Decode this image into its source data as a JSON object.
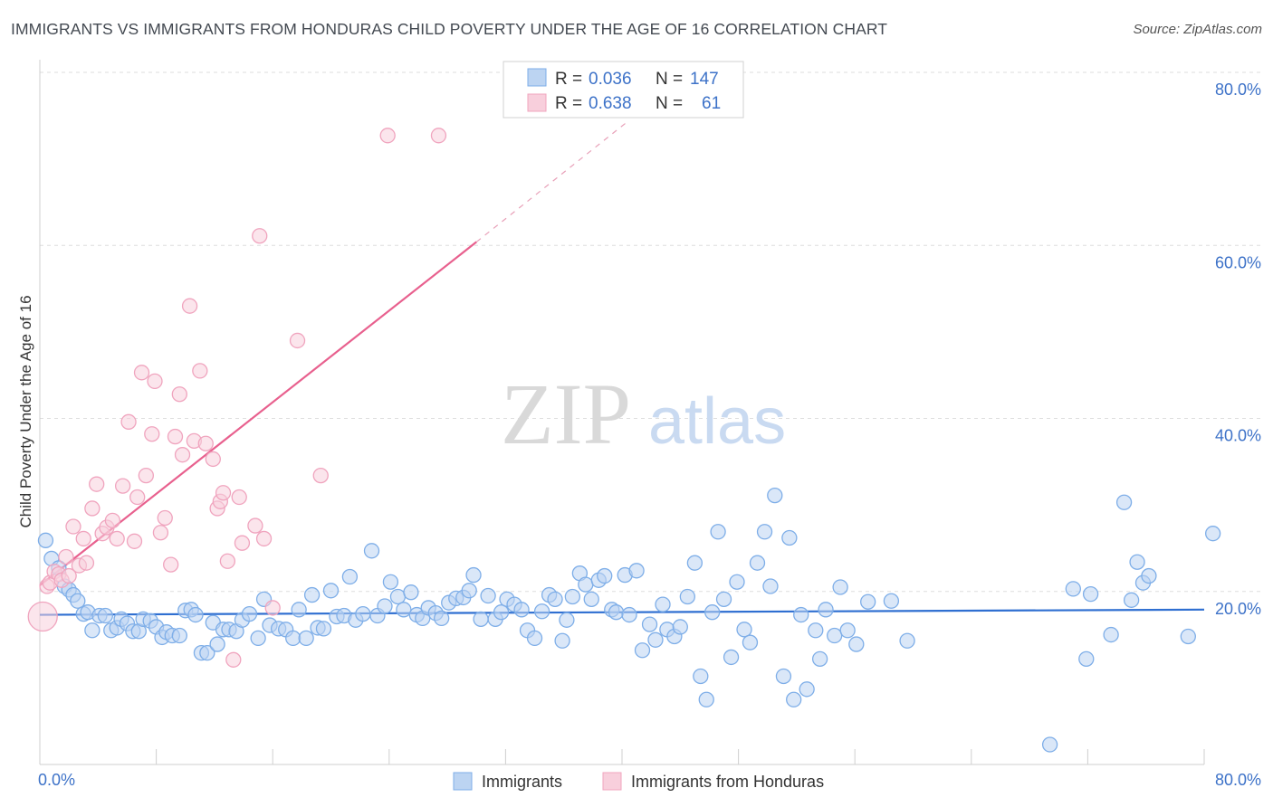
{
  "title": "IMMIGRANTS VS IMMIGRANTS FROM HONDURAS CHILD POVERTY UNDER THE AGE OF 16 CORRELATION CHART",
  "source": "Source: ZipAtlas.com",
  "watermark": {
    "zip": "ZIP",
    "atlas": "atlas"
  },
  "chart_data": {
    "type": "scatter",
    "ylabel": "Child Poverty Under the Age of 16",
    "xlim": [
      0,
      80
    ],
    "ylim": [
      0,
      80
    ],
    "x_tick_labels": [
      "0.0%",
      "80.0%"
    ],
    "y_ticks": [
      20,
      40,
      60,
      80
    ],
    "y_tick_labels": [
      "20.0%",
      "40.0%",
      "60.0%",
      "80.0%"
    ],
    "grid": true,
    "legend_position": "top-center",
    "legend": [
      {
        "r_label": "R = ",
        "r_value": "0.036",
        "n_label": "N = ",
        "n_value": "147"
      },
      {
        "r_label": "R = ",
        "r_value": "0.638",
        "n_label": "N = ",
        "n_value": "61"
      }
    ],
    "series": [
      {
        "name": "Immigrants",
        "color": "#7eaee8",
        "fill": "#bcd4f2",
        "trend_color": "#2f6fd1",
        "trend": {
          "x0": 0,
          "y0": 17.3,
          "x1": 80,
          "y1": 17.9
        },
        "points": [
          [
            0.4,
            25.9
          ],
          [
            0.8,
            23.8
          ],
          [
            1.3,
            22.7
          ],
          [
            1.7,
            20.6
          ],
          [
            2.0,
            20.2
          ],
          [
            2.3,
            19.6
          ],
          [
            2.6,
            18.9
          ],
          [
            3.0,
            17.4
          ],
          [
            3.3,
            17.6
          ],
          [
            3.6,
            15.5
          ],
          [
            4.1,
            17.2
          ],
          [
            4.5,
            17.2
          ],
          [
            4.9,
            15.5
          ],
          [
            5.3,
            15.8
          ],
          [
            5.6,
            16.8
          ],
          [
            6.0,
            16.3
          ],
          [
            6.4,
            15.4
          ],
          [
            6.8,
            15.4
          ],
          [
            7.1,
            16.8
          ],
          [
            7.6,
            16.6
          ],
          [
            8.0,
            15.9
          ],
          [
            8.4,
            14.7
          ],
          [
            8.7,
            15.3
          ],
          [
            9.1,
            14.9
          ],
          [
            9.6,
            14.9
          ],
          [
            10.0,
            17.8
          ],
          [
            10.4,
            17.9
          ],
          [
            10.7,
            17.3
          ],
          [
            11.1,
            12.9
          ],
          [
            11.5,
            12.9
          ],
          [
            11.9,
            16.4
          ],
          [
            12.2,
            13.9
          ],
          [
            12.6,
            15.6
          ],
          [
            13.0,
            15.6
          ],
          [
            13.5,
            15.4
          ],
          [
            13.9,
            16.7
          ],
          [
            14.4,
            17.4
          ],
          [
            15.0,
            14.6
          ],
          [
            15.4,
            19.1
          ],
          [
            15.8,
            16.1
          ],
          [
            16.4,
            15.7
          ],
          [
            16.9,
            15.6
          ],
          [
            17.4,
            14.6
          ],
          [
            17.8,
            17.9
          ],
          [
            18.3,
            14.6
          ],
          [
            18.7,
            19.6
          ],
          [
            19.1,
            15.8
          ],
          [
            19.5,
            15.7
          ],
          [
            20.0,
            20.1
          ],
          [
            20.4,
            17.1
          ],
          [
            20.9,
            17.2
          ],
          [
            21.3,
            21.7
          ],
          [
            21.7,
            16.7
          ],
          [
            22.2,
            17.4
          ],
          [
            22.8,
            24.7
          ],
          [
            23.2,
            17.2
          ],
          [
            23.7,
            18.3
          ],
          [
            24.1,
            21.1
          ],
          [
            24.6,
            19.4
          ],
          [
            25.0,
            17.9
          ],
          [
            25.5,
            19.9
          ],
          [
            25.9,
            17.3
          ],
          [
            26.3,
            16.9
          ],
          [
            26.7,
            18.1
          ],
          [
            27.2,
            17.5
          ],
          [
            27.6,
            16.9
          ],
          [
            28.1,
            18.7
          ],
          [
            28.6,
            19.2
          ],
          [
            29.1,
            19.3
          ],
          [
            29.5,
            20.1
          ],
          [
            29.8,
            21.9
          ],
          [
            30.3,
            16.8
          ],
          [
            30.8,
            19.5
          ],
          [
            31.3,
            16.8
          ],
          [
            31.7,
            17.6
          ],
          [
            32.1,
            19.1
          ],
          [
            32.6,
            18.5
          ],
          [
            33.1,
            17.9
          ],
          [
            33.5,
            15.5
          ],
          [
            34.0,
            14.6
          ],
          [
            34.5,
            17.7
          ],
          [
            35.0,
            19.6
          ],
          [
            35.4,
            19.1
          ],
          [
            35.9,
            14.3
          ],
          [
            36.2,
            16.7
          ],
          [
            36.6,
            19.4
          ],
          [
            37.1,
            22.1
          ],
          [
            37.5,
            20.8
          ],
          [
            37.9,
            19.1
          ],
          [
            38.4,
            21.3
          ],
          [
            38.8,
            21.8
          ],
          [
            39.3,
            17.9
          ],
          [
            39.6,
            17.6
          ],
          [
            40.2,
            21.9
          ],
          [
            40.5,
            17.3
          ],
          [
            41.0,
            22.4
          ],
          [
            41.4,
            13.2
          ],
          [
            41.9,
            16.2
          ],
          [
            42.3,
            14.4
          ],
          [
            42.8,
            18.5
          ],
          [
            43.1,
            15.6
          ],
          [
            43.6,
            14.8
          ],
          [
            44.0,
            15.9
          ],
          [
            44.5,
            19.4
          ],
          [
            45.0,
            23.3
          ],
          [
            45.4,
            10.2
          ],
          [
            45.8,
            7.5
          ],
          [
            46.2,
            17.6
          ],
          [
            46.6,
            26.9
          ],
          [
            47.0,
            19.1
          ],
          [
            47.5,
            12.4
          ],
          [
            47.9,
            21.1
          ],
          [
            48.4,
            15.6
          ],
          [
            48.8,
            14.1
          ],
          [
            49.3,
            23.3
          ],
          [
            49.8,
            26.9
          ],
          [
            50.2,
            20.6
          ],
          [
            50.5,
            31.1
          ],
          [
            51.1,
            10.2
          ],
          [
            51.5,
            26.2
          ],
          [
            51.8,
            7.5
          ],
          [
            52.3,
            17.3
          ],
          [
            52.7,
            8.7
          ],
          [
            53.3,
            15.5
          ],
          [
            53.6,
            12.2
          ],
          [
            54.0,
            17.9
          ],
          [
            54.6,
            14.9
          ],
          [
            55.0,
            20.5
          ],
          [
            55.5,
            15.5
          ],
          [
            56.1,
            13.9
          ],
          [
            56.9,
            18.8
          ],
          [
            58.5,
            18.9
          ],
          [
            59.6,
            14.3
          ],
          [
            69.4,
            2.3
          ],
          [
            71.0,
            20.3
          ],
          [
            71.9,
            12.2
          ],
          [
            72.2,
            19.7
          ],
          [
            73.6,
            15.0
          ],
          [
            74.5,
            30.3
          ],
          [
            75.0,
            19.0
          ],
          [
            75.4,
            23.4
          ],
          [
            75.8,
            21.0
          ],
          [
            76.2,
            21.8
          ],
          [
            78.9,
            14.8
          ],
          [
            80.6,
            26.7
          ]
        ]
      },
      {
        "name": "Immigrants from Honduras",
        "color": "#f0a4be",
        "fill": "#f8cfdc",
        "trend_color": "#e8608e",
        "trend": {
          "x0": 0,
          "y0": 20.7,
          "x1": 30.0,
          "y1": 60.4
        },
        "trend_dashed_to": {
          "x": 40.3,
          "y": 74.2
        },
        "points": [
          [
            0.2,
            17.1
          ],
          [
            0.5,
            20.6
          ],
          [
            0.7,
            21.0
          ],
          [
            1.0,
            22.3
          ],
          [
            1.3,
            22.0
          ],
          [
            1.5,
            21.3
          ],
          [
            1.8,
            24.0
          ],
          [
            2.0,
            21.8
          ],
          [
            2.3,
            27.5
          ],
          [
            2.7,
            23.0
          ],
          [
            3.0,
            26.1
          ],
          [
            3.2,
            23.3
          ],
          [
            3.6,
            29.6
          ],
          [
            3.9,
            32.4
          ],
          [
            4.3,
            26.7
          ],
          [
            4.6,
            27.4
          ],
          [
            5.0,
            28.2
          ],
          [
            5.3,
            26.1
          ],
          [
            5.7,
            32.2
          ],
          [
            6.1,
            39.6
          ],
          [
            6.5,
            25.8
          ],
          [
            6.7,
            30.9
          ],
          [
            7.0,
            45.3
          ],
          [
            7.3,
            33.4
          ],
          [
            7.7,
            38.2
          ],
          [
            7.9,
            44.3
          ],
          [
            8.3,
            26.8
          ],
          [
            8.6,
            28.5
          ],
          [
            9.0,
            23.1
          ],
          [
            9.3,
            37.9
          ],
          [
            9.6,
            42.8
          ],
          [
            9.8,
            35.8
          ],
          [
            10.3,
            53.0
          ],
          [
            10.6,
            37.4
          ],
          [
            11.0,
            45.5
          ],
          [
            11.4,
            37.1
          ],
          [
            11.9,
            35.3
          ],
          [
            12.2,
            29.6
          ],
          [
            12.4,
            30.4
          ],
          [
            12.6,
            31.4
          ],
          [
            12.9,
            23.5
          ],
          [
            13.3,
            12.1
          ],
          [
            13.7,
            30.9
          ],
          [
            13.9,
            25.6
          ],
          [
            14.8,
            27.6
          ],
          [
            15.1,
            61.1
          ],
          [
            15.4,
            26.1
          ],
          [
            16.0,
            18.1
          ],
          [
            17.7,
            49.0
          ],
          [
            19.3,
            33.4
          ],
          [
            23.9,
            72.7
          ],
          [
            27.4,
            72.7
          ]
        ]
      }
    ]
  }
}
